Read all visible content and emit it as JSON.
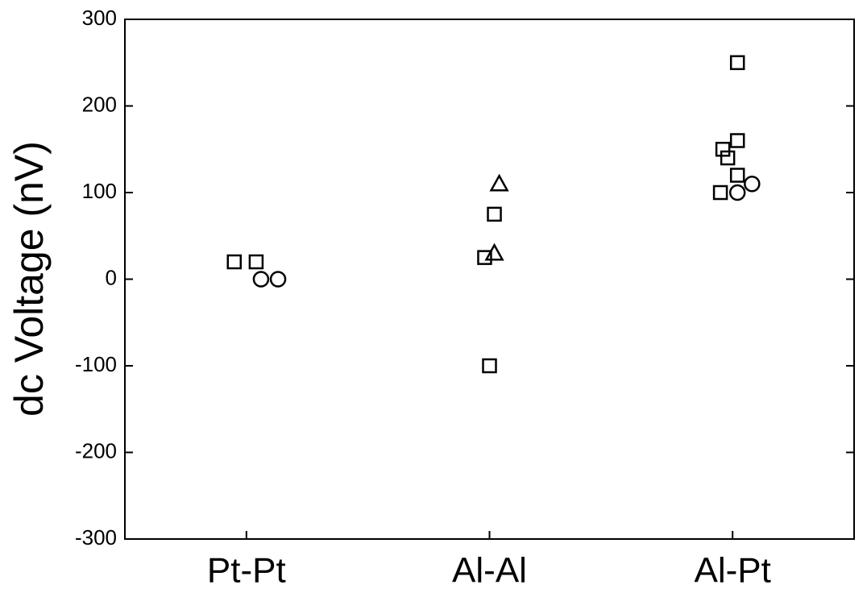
{
  "chart_data": {
    "type": "scatter",
    "y_label": "dc Voltage (nV)",
    "xlim": [
      0.5,
      3.5
    ],
    "xticks": [
      {
        "value": 1,
        "label": "Pt-Pt"
      },
      {
        "value": 2,
        "label": "Al-Al"
      },
      {
        "value": 3,
        "label": "Al-Pt"
      }
    ],
    "ylim": [
      -300,
      300
    ],
    "yticks": [
      -300,
      -200,
      -100,
      0,
      100,
      200,
      300
    ],
    "series": [
      {
        "marker": "square",
        "color": "#000000",
        "x": [
          0.95,
          1.04,
          1.98,
          2.02,
          2.0,
          3.02,
          3.02,
          2.96,
          2.98,
          3.02,
          2.95
        ],
        "values": [
          20,
          20,
          25,
          75,
          -100,
          250,
          160,
          150,
          140,
          120,
          100
        ]
      },
      {
        "marker": "circle",
        "color": "#000000",
        "x": [
          1.06,
          1.13,
          3.02,
          3.08
        ],
        "values": [
          0,
          0,
          100,
          110
        ]
      },
      {
        "marker": "triangle",
        "color": "#000000",
        "x": [
          2.04,
          2.02
        ],
        "values": [
          110,
          30
        ]
      }
    ]
  }
}
